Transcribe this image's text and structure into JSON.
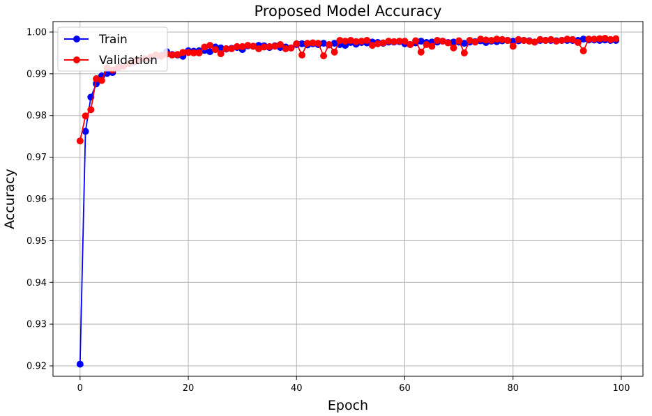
{
  "chart_data": {
    "type": "line",
    "title": "Proposed Model Accuracy",
    "xlabel": "Epoch",
    "ylabel": "Accuracy",
    "xlim": [
      -5,
      104
    ],
    "ylim": [
      0.9175,
      1.0025
    ],
    "xticks": [
      0,
      20,
      40,
      60,
      80,
      100
    ],
    "yticks": [
      0.92,
      0.93,
      0.94,
      0.95,
      0.96,
      0.97,
      0.98,
      0.99,
      1.0
    ],
    "ytick_labels": [
      "0.92",
      "0.93",
      "0.94",
      "0.95",
      "0.96",
      "0.97",
      "0.98",
      "0.99",
      "1.00"
    ],
    "grid": true,
    "legend_position": "upper-left",
    "series": [
      {
        "name": "Train",
        "color": "#0000ff",
        "x": [
          0,
          1,
          2,
          3,
          4,
          5,
          6,
          7,
          8,
          9,
          10,
          11,
          12,
          13,
          14,
          15,
          16,
          17,
          18,
          19,
          20,
          21,
          22,
          23,
          24,
          25,
          26,
          27,
          28,
          29,
          30,
          31,
          32,
          33,
          34,
          35,
          36,
          37,
          38,
          39,
          40,
          41,
          42,
          43,
          44,
          45,
          46,
          47,
          48,
          49,
          50,
          51,
          52,
          53,
          54,
          55,
          56,
          57,
          58,
          59,
          60,
          61,
          62,
          63,
          64,
          65,
          66,
          67,
          68,
          69,
          70,
          71,
          72,
          73,
          74,
          75,
          76,
          77,
          78,
          79,
          80,
          81,
          82,
          83,
          84,
          85,
          86,
          87,
          88,
          89,
          90,
          91,
          92,
          93,
          94,
          95,
          96,
          97,
          98,
          99
        ],
        "values": [
          0.9204,
          0.9762,
          0.9844,
          0.9876,
          0.9895,
          0.9901,
          0.9903,
          0.9915,
          0.9918,
          0.9925,
          0.9928,
          0.9932,
          0.9935,
          0.9937,
          0.9942,
          0.9944,
          0.9953,
          0.9946,
          0.9945,
          0.9942,
          0.9955,
          0.9954,
          0.9955,
          0.9956,
          0.9953,
          0.9964,
          0.9962,
          0.9959,
          0.9961,
          0.9963,
          0.9958,
          0.9967,
          0.9966,
          0.9968,
          0.9967,
          0.9963,
          0.9967,
          0.9963,
          0.9964,
          0.9962,
          0.997,
          0.9972,
          0.9969,
          0.9972,
          0.997,
          0.9973,
          0.9969,
          0.9973,
          0.997,
          0.9968,
          0.9975,
          0.9971,
          0.9975,
          0.9974,
          0.9976,
          0.9975,
          0.9973,
          0.9976,
          0.9976,
          0.9977,
          0.9972,
          0.997,
          0.9974,
          0.9978,
          0.9975,
          0.9976,
          0.9976,
          0.9978,
          0.9975,
          0.9976,
          0.9976,
          0.9973,
          0.9976,
          0.9977,
          0.9979,
          0.9975,
          0.9978,
          0.9977,
          0.9979,
          0.998,
          0.9978,
          0.9979,
          0.998,
          0.9979,
          0.9976,
          0.998,
          0.998,
          0.998,
          0.9979,
          0.998,
          0.998,
          0.998,
          0.998,
          0.9983,
          0.9981,
          0.9981,
          0.998,
          0.9981,
          0.998,
          0.998
        ]
      },
      {
        "name": "Validation",
        "color": "#ff0000",
        "x": [
          0,
          1,
          2,
          3,
          4,
          5,
          6,
          7,
          8,
          9,
          10,
          11,
          12,
          13,
          14,
          15,
          16,
          17,
          18,
          19,
          20,
          21,
          22,
          23,
          24,
          25,
          26,
          27,
          28,
          29,
          30,
          31,
          32,
          33,
          34,
          35,
          36,
          37,
          38,
          39,
          40,
          41,
          42,
          43,
          44,
          45,
          46,
          47,
          48,
          49,
          50,
          51,
          52,
          53,
          54,
          55,
          56,
          57,
          58,
          59,
          60,
          61,
          62,
          63,
          64,
          65,
          66,
          67,
          68,
          69,
          70,
          71,
          72,
          73,
          74,
          75,
          76,
          77,
          78,
          79,
          80,
          81,
          82,
          83,
          84,
          85,
          86,
          87,
          88,
          89,
          90,
          91,
          92,
          93,
          94,
          95,
          96,
          97,
          98,
          99
        ],
        "values": [
          0.9739,
          0.9799,
          0.9814,
          0.9888,
          0.9884,
          0.9914,
          0.9909,
          0.9914,
          0.9918,
          0.9924,
          0.993,
          0.9933,
          0.9936,
          0.994,
          0.9945,
          0.9942,
          0.9947,
          0.9945,
          0.9946,
          0.9951,
          0.9951,
          0.995,
          0.995,
          0.9964,
          0.9968,
          0.9958,
          0.9948,
          0.996,
          0.996,
          0.9965,
          0.9965,
          0.9968,
          0.9966,
          0.996,
          0.9964,
          0.9965,
          0.9966,
          0.997,
          0.996,
          0.9962,
          0.9972,
          0.9945,
          0.9973,
          0.9974,
          0.9973,
          0.9943,
          0.997,
          0.9952,
          0.998,
          0.9978,
          0.998,
          0.9977,
          0.9978,
          0.998,
          0.9968,
          0.9972,
          0.9974,
          0.9978,
          0.9977,
          0.9978,
          0.9978,
          0.997,
          0.9979,
          0.9952,
          0.997,
          0.9966,
          0.998,
          0.9978,
          0.9974,
          0.9962,
          0.9979,
          0.995,
          0.998,
          0.9976,
          0.9983,
          0.9981,
          0.998,
          0.9983,
          0.9982,
          0.998,
          0.9966,
          0.9982,
          0.998,
          0.9978,
          0.9976,
          0.9982,
          0.998,
          0.9982,
          0.9978,
          0.998,
          0.9983,
          0.9982,
          0.9975,
          0.9955,
          0.9983,
          0.9983,
          0.9984,
          0.9985,
          0.9982,
          0.9984
        ]
      }
    ]
  }
}
